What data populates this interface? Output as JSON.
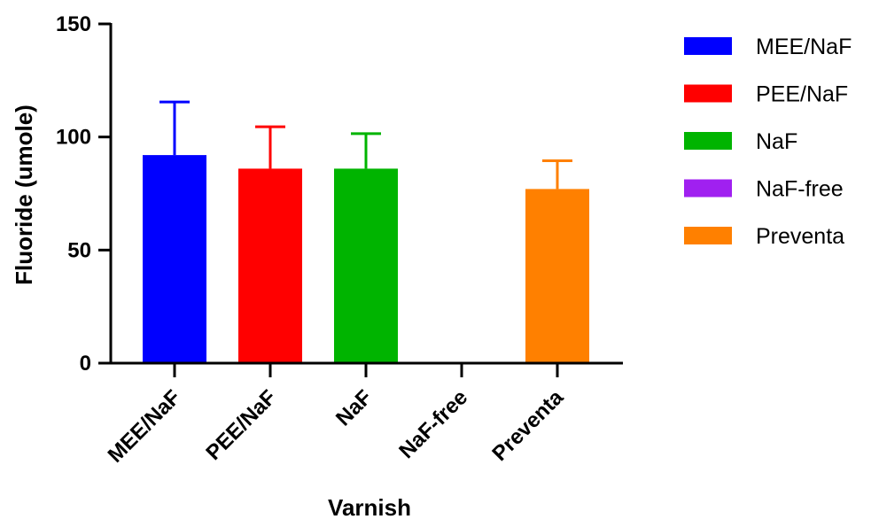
{
  "chart_data": {
    "type": "bar",
    "categories": [
      "MEE/NaF",
      "PEE/NaF",
      "NaF",
      "NaF-free",
      "Preventa"
    ],
    "values": [
      92,
      86,
      86,
      0,
      77
    ],
    "errors": [
      23.5,
      18.5,
      15.5,
      0,
      12.5
    ],
    "colors": [
      "#0000ff",
      "#ff0000",
      "#00b400",
      "#a020f0",
      "#ff8000"
    ],
    "xlabel": "Varnish",
    "ylabel": "Fluoride (umole)",
    "ylim": [
      0,
      150
    ],
    "yticks": [
      0,
      50,
      100,
      150
    ],
    "legend": {
      "position": "right",
      "entries": [
        "MEE/NaF",
        "PEE/NaF",
        "NaF",
        "NaF-free",
        "Preventa"
      ]
    }
  }
}
